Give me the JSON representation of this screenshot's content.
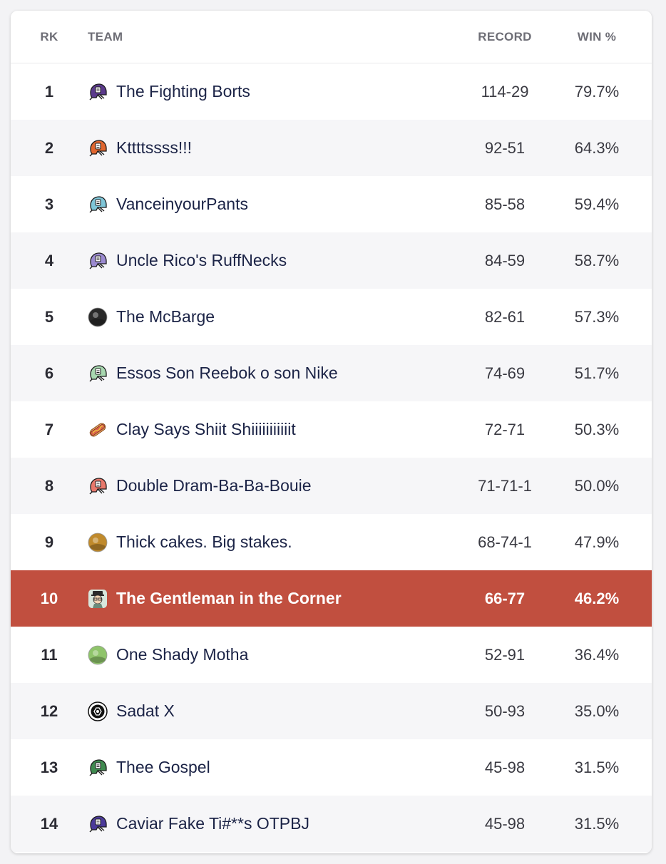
{
  "table": {
    "headers": {
      "rank": "RK",
      "team": "TEAM",
      "record": "RECORD",
      "win_pct": "WIN %"
    },
    "rows": [
      {
        "rank": "1",
        "team": "The Fighting Borts",
        "record": "114-29",
        "win_pct": "79.7%",
        "icon": "helmet-icon",
        "color": "#5b3a8c"
      },
      {
        "rank": "2",
        "team": "Kttttssss!!!",
        "record": "92-51",
        "win_pct": "64.3%",
        "icon": "helmet-icon",
        "color": "#e0662f"
      },
      {
        "rank": "3",
        "team": "VanceinyourPants",
        "record": "85-58",
        "win_pct": "59.4%",
        "icon": "helmet-icon",
        "color": "#7fc6d8"
      },
      {
        "rank": "4",
        "team": "Uncle Rico's RuffNecks",
        "record": "84-59",
        "win_pct": "58.7%",
        "icon": "helmet-icon",
        "color": "#9b8ad0"
      },
      {
        "rank": "5",
        "team": "The McBarge",
        "record": "82-61",
        "win_pct": "57.3%",
        "icon": "avatar-photo-icon",
        "color": "#2a2a2a"
      },
      {
        "rank": "6",
        "team": "Essos Son Reebok o son Nike",
        "record": "74-69",
        "win_pct": "51.7%",
        "icon": "helmet-icon",
        "color": "#a8d8b0"
      },
      {
        "rank": "7",
        "team": "Clay Says Shiit Shiiiiiiiiiiit",
        "record": "72-71",
        "win_pct": "50.3%",
        "icon": "hotdog-icon",
        "color": "#d9654a"
      },
      {
        "rank": "8",
        "team": "Double Dram-Ba-Ba-Bouie",
        "record": "71-71-1",
        "win_pct": "50.0%",
        "icon": "helmet-icon",
        "color": "#e8786b"
      },
      {
        "rank": "9",
        "team": "Thick cakes. Big stakes.",
        "record": "68-74-1",
        "win_pct": "47.9%",
        "icon": "avatar-photo-icon",
        "color": "#c08a2c"
      },
      {
        "rank": "10",
        "team": "The Gentleman in the Corner",
        "record": "66-77",
        "win_pct": "46.2%",
        "icon": "avatar-cartoon-icon",
        "color": "#6a8a7a",
        "highlighted": true
      },
      {
        "rank": "11",
        "team": "One Shady Motha",
        "record": "52-91",
        "win_pct": "36.4%",
        "icon": "avatar-photo-icon",
        "color": "#8fc46b"
      },
      {
        "rank": "12",
        "team": "Sadat X",
        "record": "50-93",
        "win_pct": "35.0%",
        "icon": "avatar-emblem-icon",
        "color": "#111111"
      },
      {
        "rank": "13",
        "team": "Thee Gospel",
        "record": "45-98",
        "win_pct": "31.5%",
        "icon": "helmet-icon",
        "color": "#3f8a4f"
      },
      {
        "rank": "14",
        "team": "Caviar Fake Ti#**s OTPBJ",
        "record": "45-98",
        "win_pct": "31.5%",
        "icon": "helmet-icon",
        "color": "#4b3a9a"
      }
    ]
  },
  "colors": {
    "highlight": "#c14f3f",
    "alt_row": "#f6f6f8",
    "text": "#1b2346"
  }
}
